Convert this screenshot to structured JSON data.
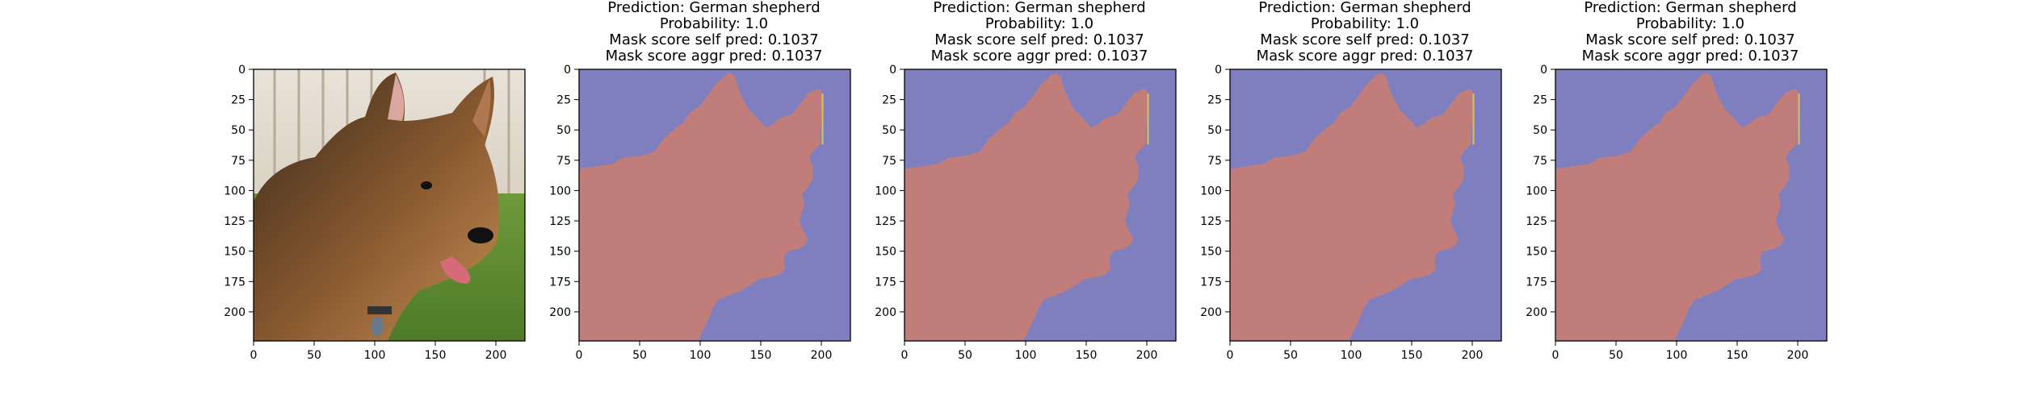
{
  "figure": {
    "panels": [
      {
        "id": "input-image",
        "title_lines": [],
        "content": "photo of a German shepherd dog on grass in front of a wooden fence"
      },
      {
        "id": "mask-1",
        "title_lines": [
          "Prediction: German shepherd",
          "Probability: 1.0",
          "Mask score self pred: 0.1037",
          "Mask score aggr pred: 0.1037"
        ]
      },
      {
        "id": "mask-2",
        "title_lines": [
          "Prediction: German shepherd",
          "Probability: 1.0",
          "Mask score self pred: 0.1037",
          "Mask score aggr pred: 0.1037"
        ]
      },
      {
        "id": "mask-3",
        "title_lines": [
          "Prediction: German shepherd",
          "Probability: 1.0",
          "Mask score self pred: 0.1037",
          "Mask score aggr pred: 0.1037"
        ]
      },
      {
        "id": "mask-4",
        "title_lines": [
          "Prediction: German shepherd",
          "Probability: 1.0",
          "Mask score self pred: 0.1037",
          "Mask score aggr pred: 0.1037"
        ]
      }
    ],
    "colors": {
      "mask_foreground": "#c07d7a",
      "mask_background": "#7f7fc0",
      "mask_edge_yellow": "#d8c45a",
      "axes": "#000000"
    }
  },
  "chart_data": {
    "type": "heatmap",
    "image_size": [
      224,
      224
    ],
    "x_ticks": [
      0,
      50,
      100,
      150,
      200
    ],
    "y_ticks": [
      0,
      25,
      50,
      75,
      100,
      125,
      150,
      175,
      200
    ],
    "xlim": [
      0,
      224
    ],
    "ylim": [
      224,
      0
    ],
    "mask_regions": [
      "foreground",
      "background"
    ],
    "mask_outline": [
      [
        0,
        82
      ],
      [
        14,
        80
      ],
      [
        28,
        78
      ],
      [
        36,
        73
      ],
      [
        52,
        71
      ],
      [
        62,
        68
      ],
      [
        70,
        57
      ],
      [
        80,
        48
      ],
      [
        86,
        44
      ],
      [
        91,
        36
      ],
      [
        99,
        31
      ],
      [
        106,
        22
      ],
      [
        113,
        12
      ],
      [
        122,
        4
      ],
      [
        125,
        3
      ],
      [
        129,
        6
      ],
      [
        131,
        14
      ],
      [
        135,
        24
      ],
      [
        140,
        33
      ],
      [
        147,
        40
      ],
      [
        154,
        48
      ],
      [
        160,
        45
      ],
      [
        166,
        40
      ],
      [
        176,
        37
      ],
      [
        182,
        29
      ],
      [
        190,
        19
      ],
      [
        198,
        16
      ],
      [
        201,
        19
      ],
      [
        200,
        40
      ],
      [
        199,
        62
      ],
      [
        193,
        68
      ],
      [
        190,
        73
      ],
      [
        193,
        80
      ],
      [
        193,
        90
      ],
      [
        189,
        97
      ],
      [
        184,
        103
      ],
      [
        186,
        111
      ],
      [
        184,
        118
      ],
      [
        182,
        125
      ],
      [
        185,
        133
      ],
      [
        189,
        140
      ],
      [
        186,
        145
      ],
      [
        181,
        148
      ],
      [
        176,
        149
      ],
      [
        171,
        151
      ],
      [
        169,
        156
      ],
      [
        170,
        165
      ],
      [
        166,
        169
      ],
      [
        160,
        171
      ],
      [
        149,
        173
      ],
      [
        135,
        182
      ],
      [
        123,
        187
      ],
      [
        115,
        190
      ],
      [
        110,
        198
      ],
      [
        106,
        208
      ],
      [
        101,
        218
      ],
      [
        98,
        224
      ],
      [
        0,
        224
      ]
    ]
  }
}
